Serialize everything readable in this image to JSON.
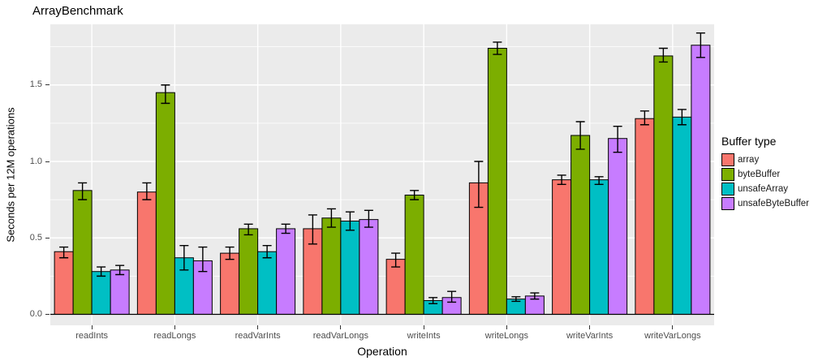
{
  "title": "ArrayBenchmark",
  "colors": {
    "panel_bg": "#EBEBEB",
    "grid": "#FFFFFF",
    "tick_label": "#4D4D4D",
    "bar_outline": "#000000",
    "array": "#F8766D",
    "byteBuffer": "#7CAE00",
    "unsafeArray": "#00BFC4",
    "unsafeByteBuffer": "#C77CFF"
  },
  "chart_data": {
    "type": "bar",
    "title": "ArrayBenchmark",
    "xlabel": "Operation",
    "ylabel": "Seconds per 12M operations",
    "legend_title": "Buffer type",
    "legend_position": "right",
    "grid": true,
    "error_bars": true,
    "ylim": [
      0,
      1.9
    ],
    "yticks": [
      0.0,
      0.5,
      1.0,
      1.5
    ],
    "categories": [
      "readInts",
      "readLongs",
      "readVarInts",
      "readVarLongs",
      "writeInts",
      "writeLongs",
      "writeVarInts",
      "writeVarLongs"
    ],
    "series": [
      {
        "name": "array",
        "color": "#F8766D",
        "values": [
          0.41,
          0.8,
          0.4,
          0.56,
          0.36,
          0.86,
          0.88,
          1.28
        ],
        "error_low": [
          0.37,
          0.75,
          0.36,
          0.46,
          0.31,
          0.7,
          0.85,
          1.24
        ],
        "error_high": [
          0.44,
          0.86,
          0.44,
          0.65,
          0.4,
          1.0,
          0.91,
          1.33
        ]
      },
      {
        "name": "byteBuffer",
        "color": "#7CAE00",
        "values": [
          0.81,
          1.45,
          0.56,
          0.63,
          0.78,
          1.74,
          1.17,
          1.69
        ],
        "error_low": [
          0.75,
          1.38,
          0.52,
          0.57,
          0.75,
          1.7,
          1.08,
          1.65
        ],
        "error_high": [
          0.86,
          1.5,
          0.59,
          0.69,
          0.81,
          1.78,
          1.26,
          1.74
        ]
      },
      {
        "name": "unsafeArray",
        "color": "#00BFC4",
        "values": [
          0.28,
          0.37,
          0.41,
          0.61,
          0.09,
          0.1,
          0.88,
          1.29
        ],
        "error_low": [
          0.25,
          0.29,
          0.37,
          0.55,
          0.07,
          0.085,
          0.85,
          1.24
        ],
        "error_high": [
          0.31,
          0.45,
          0.45,
          0.67,
          0.11,
          0.115,
          0.9,
          1.34
        ]
      },
      {
        "name": "unsafeByteBuffer",
        "color": "#C77CFF",
        "values": [
          0.29,
          0.35,
          0.56,
          0.62,
          0.11,
          0.12,
          1.15,
          1.76
        ],
        "error_low": [
          0.26,
          0.28,
          0.53,
          0.57,
          0.08,
          0.1,
          1.06,
          1.68
        ],
        "error_high": [
          0.32,
          0.44,
          0.59,
          0.68,
          0.15,
          0.14,
          1.23,
          1.84
        ]
      }
    ]
  }
}
